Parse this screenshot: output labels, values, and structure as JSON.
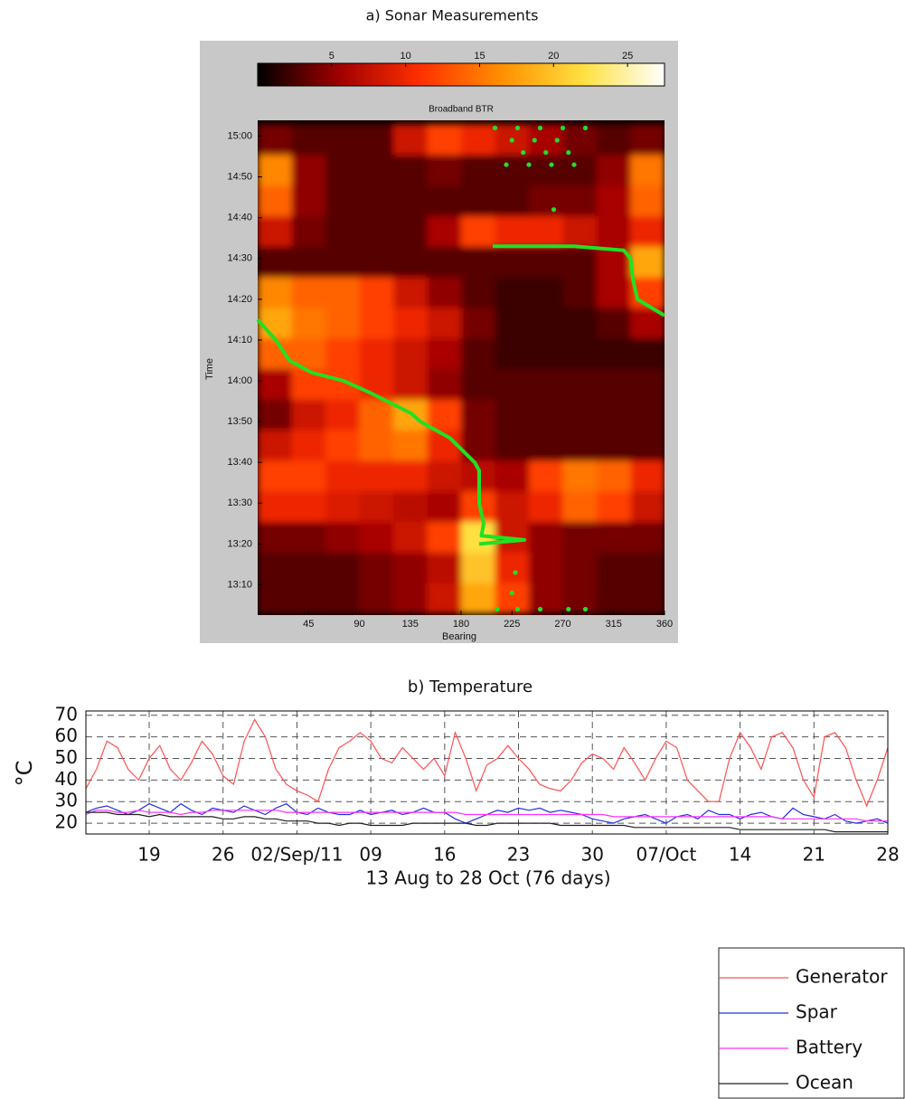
{
  "chart_data": [
    {
      "type": "heatmap",
      "title": "a) Sonar Measurements",
      "subtitle": "Broadband BTR",
      "xlabel": "Bearing",
      "ylabel": "Time",
      "xlim": [
        0,
        360
      ],
      "xticks": [
        45,
        90,
        135,
        180,
        225,
        270,
        315,
        360
      ],
      "ylim": [
        783,
        903
      ],
      "yticks": [
        {
          "value": 790,
          "label": "13:10"
        },
        {
          "value": 800,
          "label": "13:20"
        },
        {
          "value": 810,
          "label": "13:30"
        },
        {
          "value": 820,
          "label": "13:40"
        },
        {
          "value": 830,
          "label": "13:50"
        },
        {
          "value": 840,
          "label": "14:00"
        },
        {
          "value": 850,
          "label": "14:10"
        },
        {
          "value": 860,
          "label": "14:20"
        },
        {
          "value": 870,
          "label": "14:30"
        },
        {
          "value": 880,
          "label": "14:40"
        },
        {
          "value": 890,
          "label": "14:50"
        },
        {
          "value": 900,
          "label": "15:00"
        }
      ],
      "x_bins": [
        0,
        30,
        60,
        90,
        120,
        150,
        180,
        210,
        240,
        270,
        300,
        330,
        360
      ],
      "y_bins": [
        783,
        790.5,
        798,
        805.5,
        813,
        820.5,
        828,
        835.5,
        843,
        850.5,
        858,
        865.5,
        873,
        880.5,
        888,
        895.5,
        903
      ],
      "values": [
        [
          3,
          3,
          3,
          4,
          5,
          8,
          18,
          12,
          5,
          4,
          3,
          3
        ],
        [
          3,
          3,
          3,
          4,
          5,
          7,
          20,
          10,
          5,
          4,
          3,
          3
        ],
        [
          4,
          4,
          5,
          6,
          8,
          12,
          22,
          8,
          5,
          4,
          4,
          4
        ],
        [
          10,
          10,
          9,
          8,
          7,
          6,
          12,
          8,
          10,
          14,
          12,
          8
        ],
        [
          12,
          12,
          10,
          10,
          10,
          8,
          7,
          6,
          12,
          15,
          14,
          10
        ],
        [
          8,
          10,
          12,
          14,
          15,
          10,
          4,
          3,
          3,
          3,
          3,
          3
        ],
        [
          4,
          8,
          10,
          14,
          18,
          12,
          4,
          3,
          3,
          3,
          3,
          3
        ],
        [
          6,
          12,
          12,
          10,
          8,
          5,
          3,
          3,
          3,
          3,
          3,
          3
        ],
        [
          14,
          14,
          12,
          10,
          8,
          6,
          3,
          2,
          2,
          2,
          2,
          2
        ],
        [
          18,
          15,
          14,
          12,
          10,
          8,
          4,
          2,
          2,
          2,
          3,
          6
        ],
        [
          16,
          14,
          14,
          12,
          8,
          5,
          3,
          2,
          2,
          3,
          6,
          12
        ],
        [
          3,
          3,
          3,
          3,
          3,
          3,
          3,
          3,
          3,
          3,
          6,
          18
        ],
        [
          8,
          4,
          3,
          3,
          3,
          6,
          12,
          10,
          10,
          8,
          6,
          10
        ],
        [
          14,
          5,
          3,
          3,
          3,
          3,
          3,
          3,
          4,
          4,
          6,
          14
        ],
        [
          16,
          5,
          3,
          3,
          3,
          4,
          3,
          3,
          3,
          3,
          5,
          15
        ],
        [
          4,
          3,
          3,
          3,
          8,
          12,
          10,
          8,
          6,
          4,
          3,
          4
        ]
      ],
      "colormap": [
        "#000000",
        "#a00000",
        "#ff3000",
        "#ff9000",
        "#ffe040",
        "#ffffff"
      ],
      "colorbar": {
        "lim": [
          0,
          27.5
        ],
        "ticks": [
          5,
          10,
          15,
          20,
          25
        ]
      },
      "series": [
        {
          "mode": "line",
          "color": "#22e022",
          "x": [
            196,
            236,
            198,
            200,
            196,
            196,
            192,
            170,
            144,
            136,
            100,
            76,
            48,
            28,
            16,
            0,
            null,
            360,
            336,
            332,
            330,
            324,
            280,
            240,
            208
          ],
          "y": [
            800,
            801,
            802,
            805,
            810,
            818,
            820,
            826,
            830,
            832,
            837,
            840,
            842,
            845,
            850,
            855,
            null,
            856,
            860,
            865,
            870,
            872,
            873,
            873,
            873
          ]
        },
        {
          "mode": "markers",
          "color": "#22e022",
          "x": [
            210,
            230,
            250,
            270,
            290,
            225,
            245,
            265,
            235,
            255,
            275,
            220,
            240,
            260,
            280,
            262,
            212,
            230,
            250,
            275,
            290,
            225,
            228
          ],
          "y": [
            902,
            902,
            902,
            902,
            902,
            899,
            899,
            899,
            896,
            896,
            896,
            893,
            893,
            893,
            893,
            882,
            784,
            784,
            784,
            784,
            784,
            788,
            793
          ]
        }
      ]
    },
    {
      "type": "line",
      "title": "b) Temperature",
      "xlabel": "13 Aug to 28 Oct (76 days)",
      "ylabel": "°C",
      "xlim": [
        "2011-08-13",
        "2011-10-28"
      ],
      "xticks": [
        {
          "value": "2011-08-19",
          "label": "19"
        },
        {
          "value": "2011-08-26",
          "label": "26"
        },
        {
          "value": "2011-09-02",
          "label": "02/Sep/11"
        },
        {
          "value": "2011-09-09",
          "label": "09"
        },
        {
          "value": "2011-09-16",
          "label": "16"
        },
        {
          "value": "2011-09-23",
          "label": "23"
        },
        {
          "value": "2011-09-30",
          "label": "30"
        },
        {
          "value": "2011-10-07",
          "label": "07/Oct"
        },
        {
          "value": "2011-10-14",
          "label": "14"
        },
        {
          "value": "2011-10-21",
          "label": "21"
        },
        {
          "value": "2011-10-28",
          "label": "28"
        }
      ],
      "ylim": [
        15,
        72
      ],
      "yticks": [
        20,
        30,
        40,
        50,
        60,
        70
      ],
      "grid": true,
      "legend": "below-right",
      "x": [
        "2011-08-13",
        "2011-08-14",
        "2011-08-15",
        "2011-08-16",
        "2011-08-17",
        "2011-08-18",
        "2011-08-19",
        "2011-08-20",
        "2011-08-21",
        "2011-08-22",
        "2011-08-23",
        "2011-08-24",
        "2011-08-25",
        "2011-08-26",
        "2011-08-27",
        "2011-08-28",
        "2011-08-29",
        "2011-08-30",
        "2011-08-31",
        "2011-09-01",
        "2011-09-02",
        "2011-09-03",
        "2011-09-04",
        "2011-09-05",
        "2011-09-06",
        "2011-09-07",
        "2011-09-08",
        "2011-09-09",
        "2011-09-10",
        "2011-09-11",
        "2011-09-12",
        "2011-09-13",
        "2011-09-14",
        "2011-09-15",
        "2011-09-16",
        "2011-09-17",
        "2011-09-18",
        "2011-09-19",
        "2011-09-20",
        "2011-09-21",
        "2011-09-22",
        "2011-09-23",
        "2011-09-24",
        "2011-09-25",
        "2011-09-26",
        "2011-09-27",
        "2011-09-28",
        "2011-09-29",
        "2011-09-30",
        "2011-10-01",
        "2011-10-02",
        "2011-10-03",
        "2011-10-04",
        "2011-10-05",
        "2011-10-06",
        "2011-10-07",
        "2011-10-08",
        "2011-10-09",
        "2011-10-10",
        "2011-10-11",
        "2011-10-12",
        "2011-10-13",
        "2011-10-14",
        "2011-10-15",
        "2011-10-16",
        "2011-10-17",
        "2011-10-18",
        "2011-10-19",
        "2011-10-20",
        "2011-10-21",
        "2011-10-22",
        "2011-10-23",
        "2011-10-24",
        "2011-10-25",
        "2011-10-26",
        "2011-10-27",
        "2011-10-28"
      ],
      "series": [
        {
          "name": "Generator",
          "color": "#ff5050",
          "values": [
            36,
            45,
            58,
            55,
            45,
            40,
            50,
            56,
            45,
            40,
            48,
            58,
            52,
            42,
            38,
            58,
            68,
            60,
            45,
            38,
            35,
            33,
            30,
            45,
            55,
            58,
            62,
            58,
            50,
            48,
            55,
            50,
            45,
            50,
            42,
            62,
            50,
            35,
            47,
            50,
            56,
            50,
            45,
            38,
            36,
            35,
            40,
            48,
            52,
            50,
            45,
            55,
            48,
            40,
            50,
            58,
            55,
            40,
            35,
            30,
            30,
            50,
            62,
            55,
            45,
            60,
            62,
            55,
            40,
            32,
            60,
            62,
            55,
            40,
            28,
            40,
            55
          ]
        },
        {
          "name": "Spar",
          "color": "#2030e0",
          "values": [
            25,
            27,
            28,
            26,
            24,
            26,
            29,
            27,
            25,
            29,
            26,
            24,
            27,
            26,
            25,
            28,
            26,
            24,
            27,
            29,
            25,
            24,
            27,
            25,
            24,
            24,
            26,
            24,
            25,
            26,
            24,
            25,
            27,
            25,
            25,
            22,
            20,
            22,
            24,
            26,
            25,
            27,
            26,
            27,
            25,
            26,
            25,
            24,
            22,
            21,
            20,
            22,
            23,
            24,
            22,
            20,
            23,
            24,
            22,
            26,
            24,
            24,
            22,
            24,
            25,
            23,
            22,
            27,
            24,
            23,
            22,
            24,
            21,
            20,
            21,
            22,
            20
          ]
        },
        {
          "name": "Battery",
          "color": "#ff30ff",
          "values": [
            24,
            26,
            26,
            25,
            25,
            26,
            25,
            25,
            25,
            24,
            25,
            25,
            26,
            26,
            26,
            26,
            26,
            26,
            26,
            25,
            25,
            25,
            25,
            25,
            25,
            25,
            25,
            25,
            25,
            25,
            25,
            25,
            25,
            25,
            25,
            25,
            24,
            24,
            24,
            24,
            24,
            24,
            24,
            24,
            24,
            24,
            24,
            24,
            24,
            24,
            23,
            23,
            23,
            23,
            23,
            23,
            23,
            23,
            23,
            23,
            23,
            23,
            23,
            23,
            23,
            23,
            22,
            22,
            22,
            22,
            22,
            22,
            22,
            22,
            21,
            21,
            21
          ]
        },
        {
          "name": "Ocean",
          "color": "#202020",
          "values": [
            25,
            25,
            25,
            24,
            24,
            24,
            23,
            24,
            23,
            23,
            23,
            23,
            23,
            22,
            22,
            23,
            23,
            22,
            22,
            21,
            21,
            21,
            20,
            20,
            19,
            20,
            20,
            19,
            19,
            19,
            19,
            20,
            20,
            20,
            20,
            20,
            20,
            19,
            19,
            20,
            20,
            20,
            20,
            20,
            20,
            19,
            19,
            19,
            19,
            19,
            19,
            19,
            18,
            18,
            18,
            18,
            18,
            18,
            18,
            18,
            18,
            18,
            17,
            17,
            17,
            17,
            17,
            17,
            17,
            17,
            17,
            16,
            16,
            16,
            16,
            16,
            16
          ]
        }
      ]
    }
  ]
}
